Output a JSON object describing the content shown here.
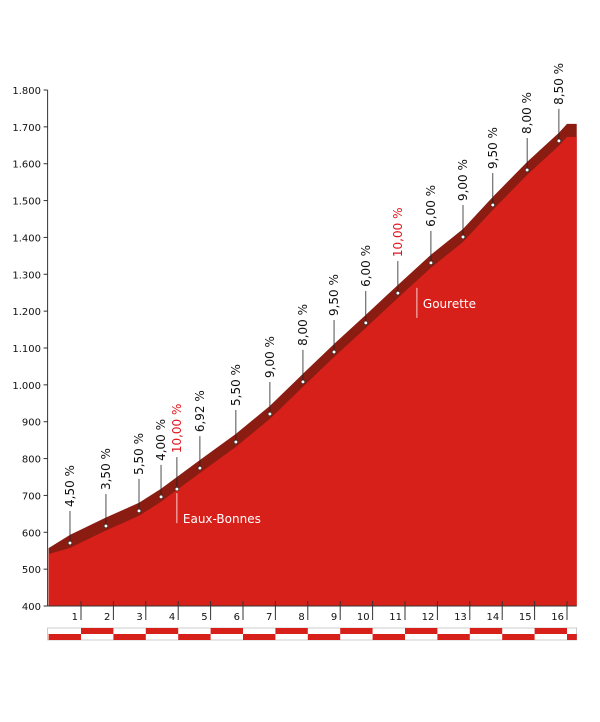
{
  "chart_data": {
    "type": "profile",
    "x": [
      0,
      0.66,
      1.77,
      2.79,
      3.47,
      4.67,
      5.78,
      6.83,
      7.85,
      8.81,
      9.79,
      10.78,
      11.8,
      12.79,
      13.71,
      14.77,
      15.75,
      16.0,
      16.3
    ],
    "values": [
      557,
      593,
      640,
      680,
      718,
      796,
      867,
      943,
      1030,
      1111,
      1190,
      1271,
      1353,
      1423,
      1510,
      1605,
      1684,
      1708,
      1708
    ],
    "color": "#d8201a",
    "edge_color": "#8a1c12",
    "markers": {
      "x": [
        0.66,
        1.77,
        2.79,
        3.47,
        3.96,
        4.67,
        5.78,
        6.83,
        7.85,
        8.81,
        9.79,
        10.78,
        11.8,
        12.79,
        13.71,
        14.77,
        15.75
      ],
      "y": [
        571,
        617,
        658,
        696,
        717,
        774,
        845,
        921,
        1008,
        1089,
        1168,
        1249,
        1331,
        1401,
        1488,
        1583,
        1662
      ],
      "labels": [
        "4,50 %",
        "3,50 %",
        "5,50 %",
        "4,00 %",
        "10,00 %",
        "6,92 %",
        "5,50 %",
        "9,00 %",
        "8,00 %",
        "9,50 %",
        "6,00 %",
        "10,00 %",
        "6,00 %",
        "9,00 %",
        "9,50 %",
        "8,00 %",
        "8,50 %"
      ],
      "colors": [
        "#111",
        "#111",
        "#111",
        "#111",
        "#e0141c",
        "#111",
        "#111",
        "#111",
        "#111",
        "#111",
        "#111",
        "#e0141c",
        "#111",
        "#111",
        "#111",
        "#111",
        "#111"
      ]
    },
    "annotations": [
      "Eaux-Bonnes",
      "Gourette"
    ],
    "xlim": [
      0,
      16.3
    ],
    "xticks": [
      1,
      2,
      3,
      4,
      5,
      6,
      7,
      8,
      9,
      10,
      11,
      12,
      13,
      14,
      15,
      16
    ],
    "ylim": [
      400,
      1800
    ],
    "yticks": [
      400,
      500,
      600,
      700,
      800,
      900,
      {
        "value": 1000,
        "label": "1.000"
      },
      {
        "value": 1100,
        "label": "1.100"
      },
      {
        "value": 1200,
        "label": "1.200"
      },
      {
        "value": 1300,
        "label": "1.300"
      },
      {
        "value": 1400,
        "label": "1.400"
      },
      {
        "value": 1500,
        "label": "1.500"
      },
      {
        "value": 1600,
        "label": "1.600"
      },
      {
        "value": 1700,
        "label": "1.700"
      },
      {
        "value": 1800,
        "label": "1.800"
      }
    ]
  }
}
